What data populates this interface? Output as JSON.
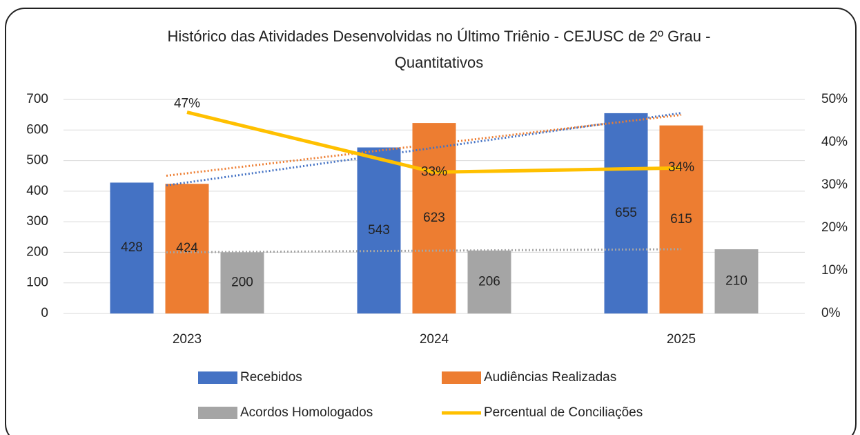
{
  "chart_data": {
    "type": "bar",
    "title": [
      "Histórico das Atividades Desenvolvidas no Último Triênio - CEJUSC de 2º Grau -",
      "Quantitativos"
    ],
    "categories": [
      "2023",
      "2024",
      "2025"
    ],
    "series": [
      {
        "name": "Recebidos",
        "color": "#4472c4",
        "values": [
          428,
          543,
          655
        ],
        "trendline": true
      },
      {
        "name": "Audiências Realizadas",
        "color": "#ed7d31",
        "values": [
          424,
          623,
          615
        ],
        "trendline": true
      },
      {
        "name": "Acordos Homologados",
        "color": "#a5a5a5",
        "values": [
          200,
          206,
          210
        ],
        "trendline": true
      },
      {
        "name": "Percentual de Conciliações",
        "type": "line",
        "axis": "y2",
        "color": "#ffc000",
        "values": [
          47,
          33,
          34
        ],
        "value_labels": [
          "47%",
          "33%",
          "34%"
        ]
      }
    ],
    "ylim": [
      0,
      700
    ],
    "yticks": [
      0,
      100,
      200,
      300,
      400,
      500,
      600,
      700
    ],
    "y2lim": [
      0,
      50
    ],
    "y2ticks": [
      {
        "value": 0,
        "label": "0%"
      },
      {
        "value": 10,
        "label": "10%"
      },
      {
        "value": 20,
        "label": "20%"
      },
      {
        "value": 30,
        "label": "30%"
      },
      {
        "value": 40,
        "label": "40%"
      },
      {
        "value": 50,
        "label": "50%"
      }
    ],
    "grid": true,
    "legend": "bottom"
  }
}
